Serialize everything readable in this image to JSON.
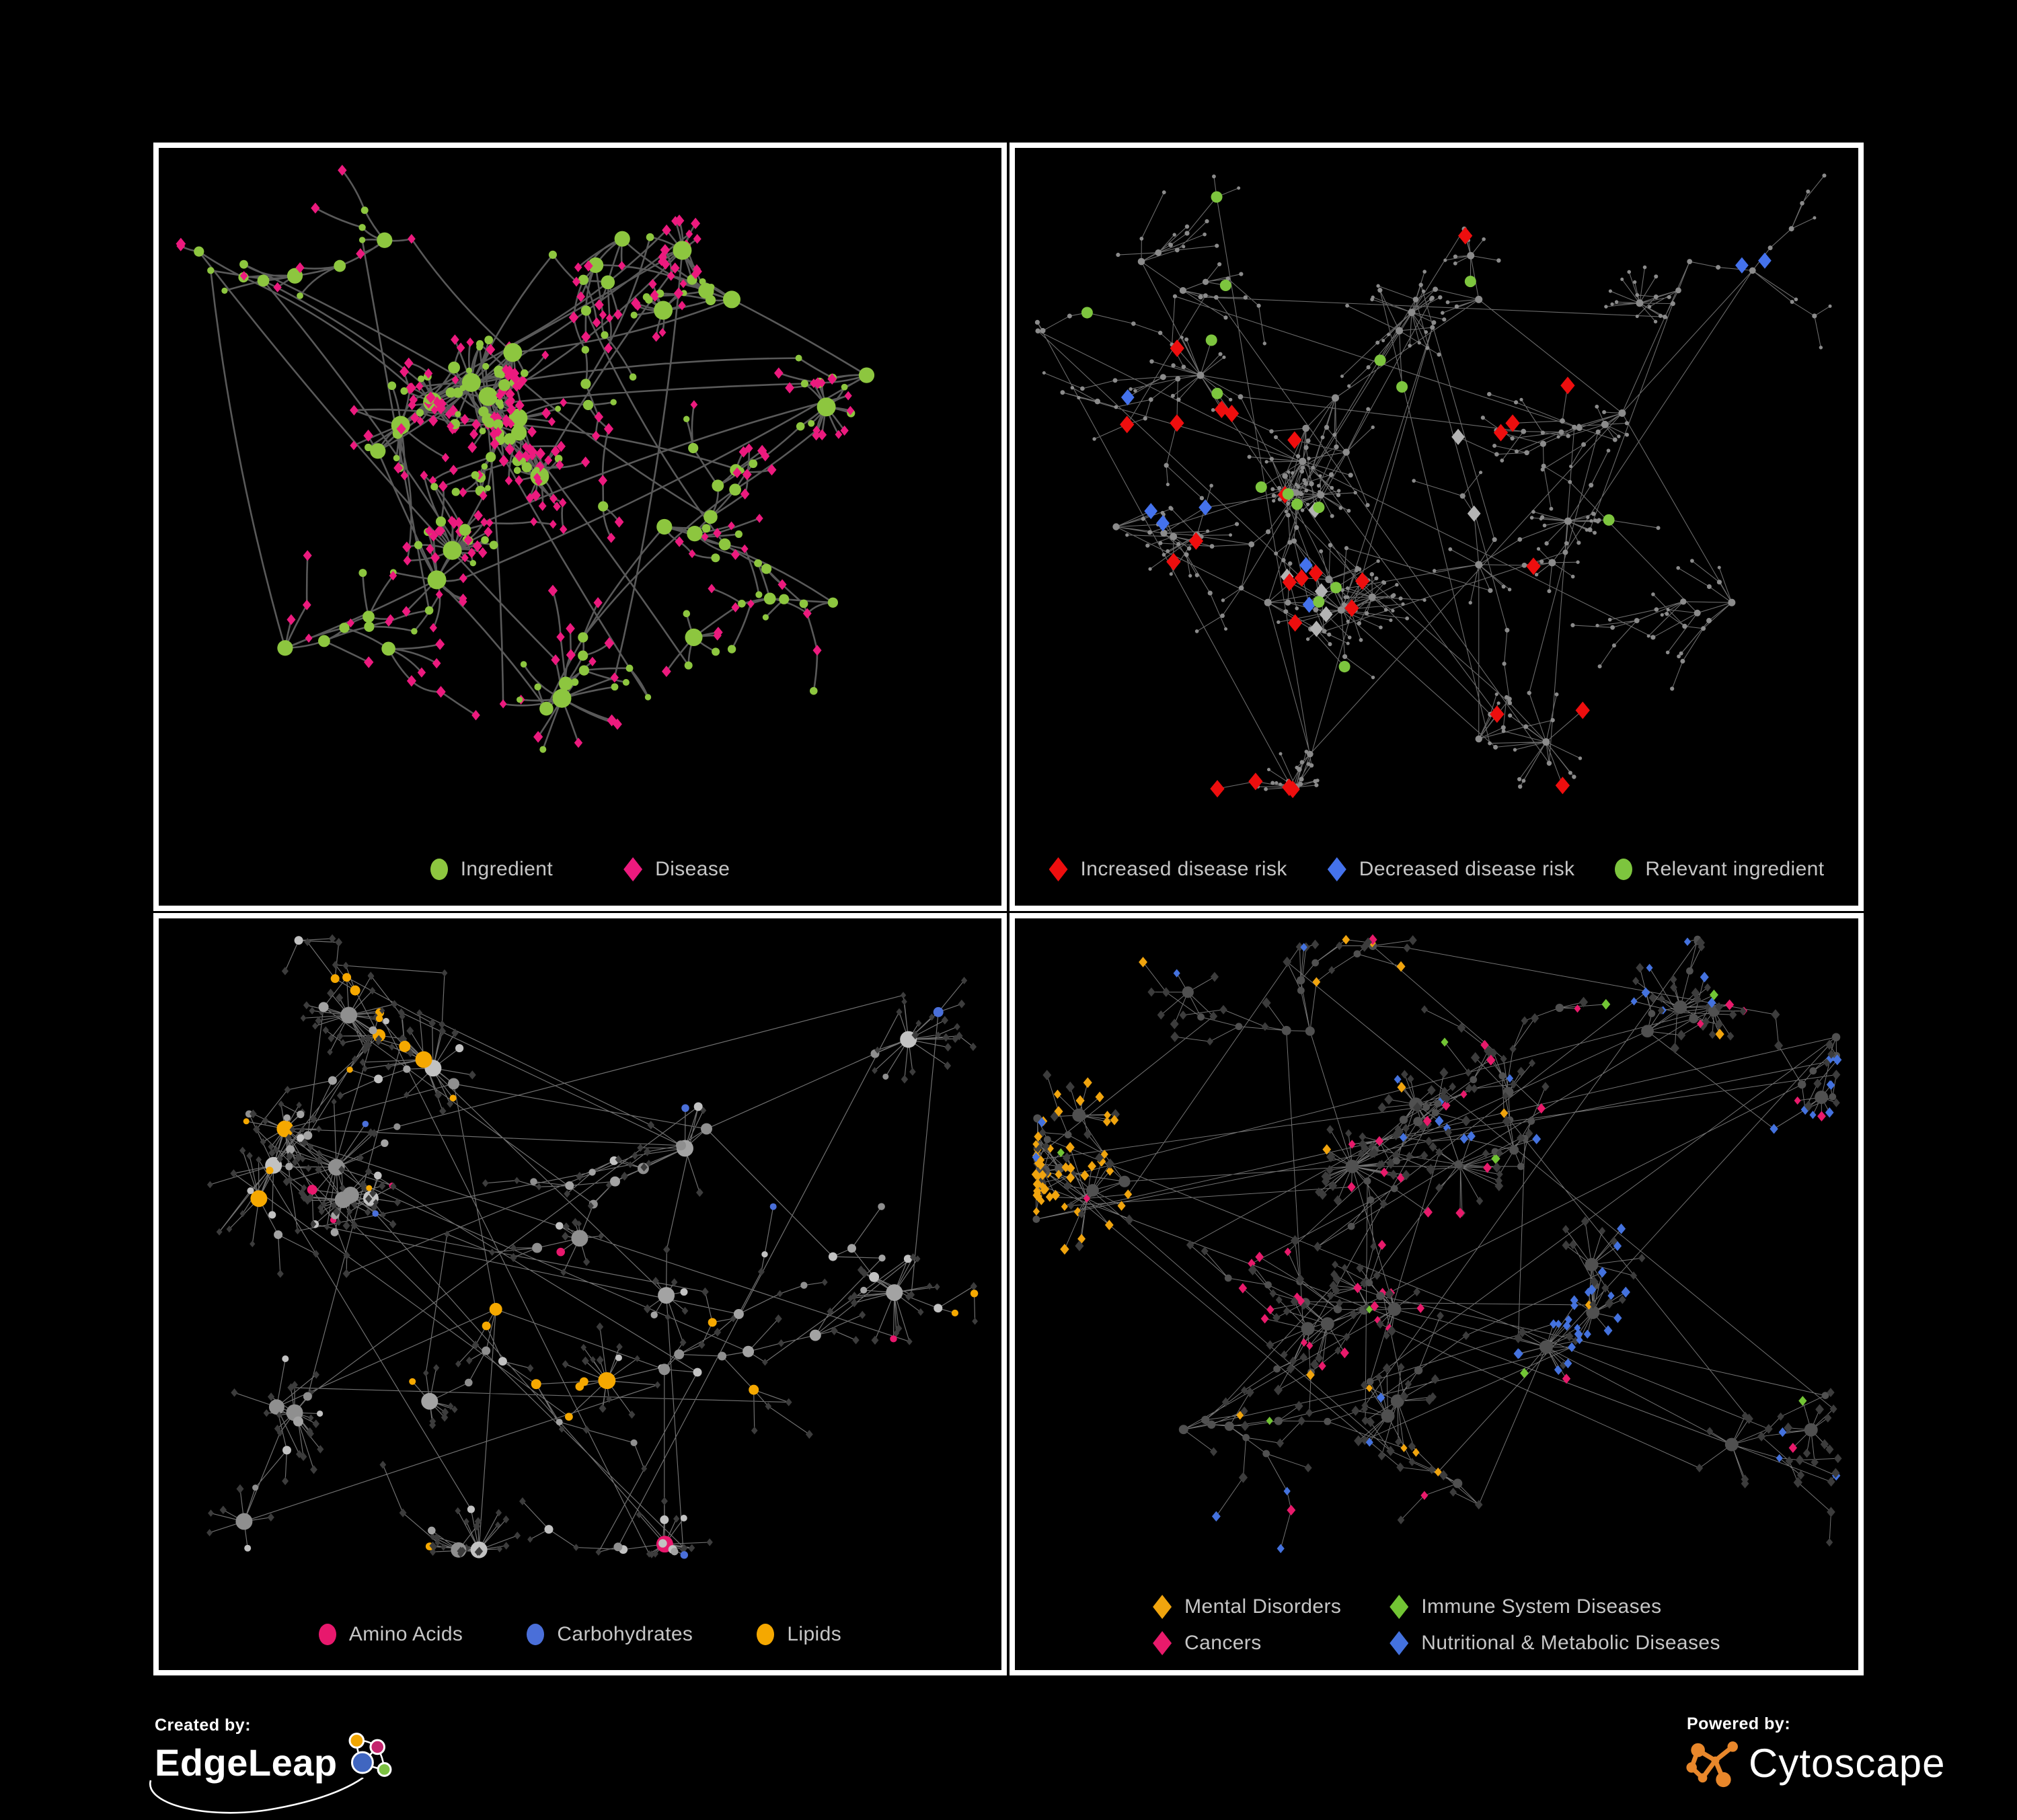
{
  "branding": {
    "created_by_label": "Created by:",
    "created_by_name": "EdgeLeap",
    "powered_by_label": "Powered by:",
    "powered_by_name": "Cytoscape"
  },
  "colors": {
    "background": "#000000",
    "panel_border": "#ffffff",
    "legend_text": "#c6c6c6",
    "cytoscape_orange": "#E8872B",
    "edgeleap_logo": [
      "#F0A500",
      "#C4246E",
      "#4066C0",
      "#7CC142"
    ]
  },
  "panels": [
    {
      "name": "ingredient-disease-network",
      "type": "network",
      "edge_color": "#636363",
      "legend": [
        {
          "shape": "circle",
          "color": "#8DC63F",
          "label": "Ingredient"
        },
        {
          "shape": "diamond",
          "color": "#EC1A7E",
          "label": "Disease"
        }
      ]
    },
    {
      "name": "disease-risk-network",
      "type": "network",
      "edge_color": "#7c7c7c",
      "legend": [
        {
          "shape": "diamond",
          "color": "#EE0E0E",
          "label": "Increased disease risk"
        },
        {
          "shape": "diamond",
          "color": "#4472EC",
          "label": "Decreased disease risk"
        },
        {
          "shape": "circle",
          "color": "#7DC53E",
          "label": "Relevant ingredient"
        }
      ]
    },
    {
      "name": "ingredient-class-network",
      "type": "network",
      "edge_color": "#8c8c8c",
      "legend": [
        {
          "shape": "circle",
          "color": "#E8186D",
          "label": "Amino Acids"
        },
        {
          "shape": "circle",
          "color": "#4A6FD9",
          "label": "Carbohydrates"
        },
        {
          "shape": "circle",
          "color": "#F5A800",
          "label": "Lipids"
        }
      ]
    },
    {
      "name": "disease-class-network",
      "type": "network",
      "edge_color": "#9a9a9a",
      "legend": [
        {
          "shape": "diamond",
          "color": "#F0A40E",
          "label": "Mental Disorders"
        },
        {
          "shape": "diamond",
          "color": "#72C534",
          "label": "Immune System Diseases"
        },
        {
          "shape": "diamond",
          "color": "#E81A6B",
          "label": "Cancers"
        },
        {
          "shape": "diamond",
          "color": "#4472DE",
          "label": "Nutritional & Metabolic Diseases"
        }
      ]
    }
  ]
}
